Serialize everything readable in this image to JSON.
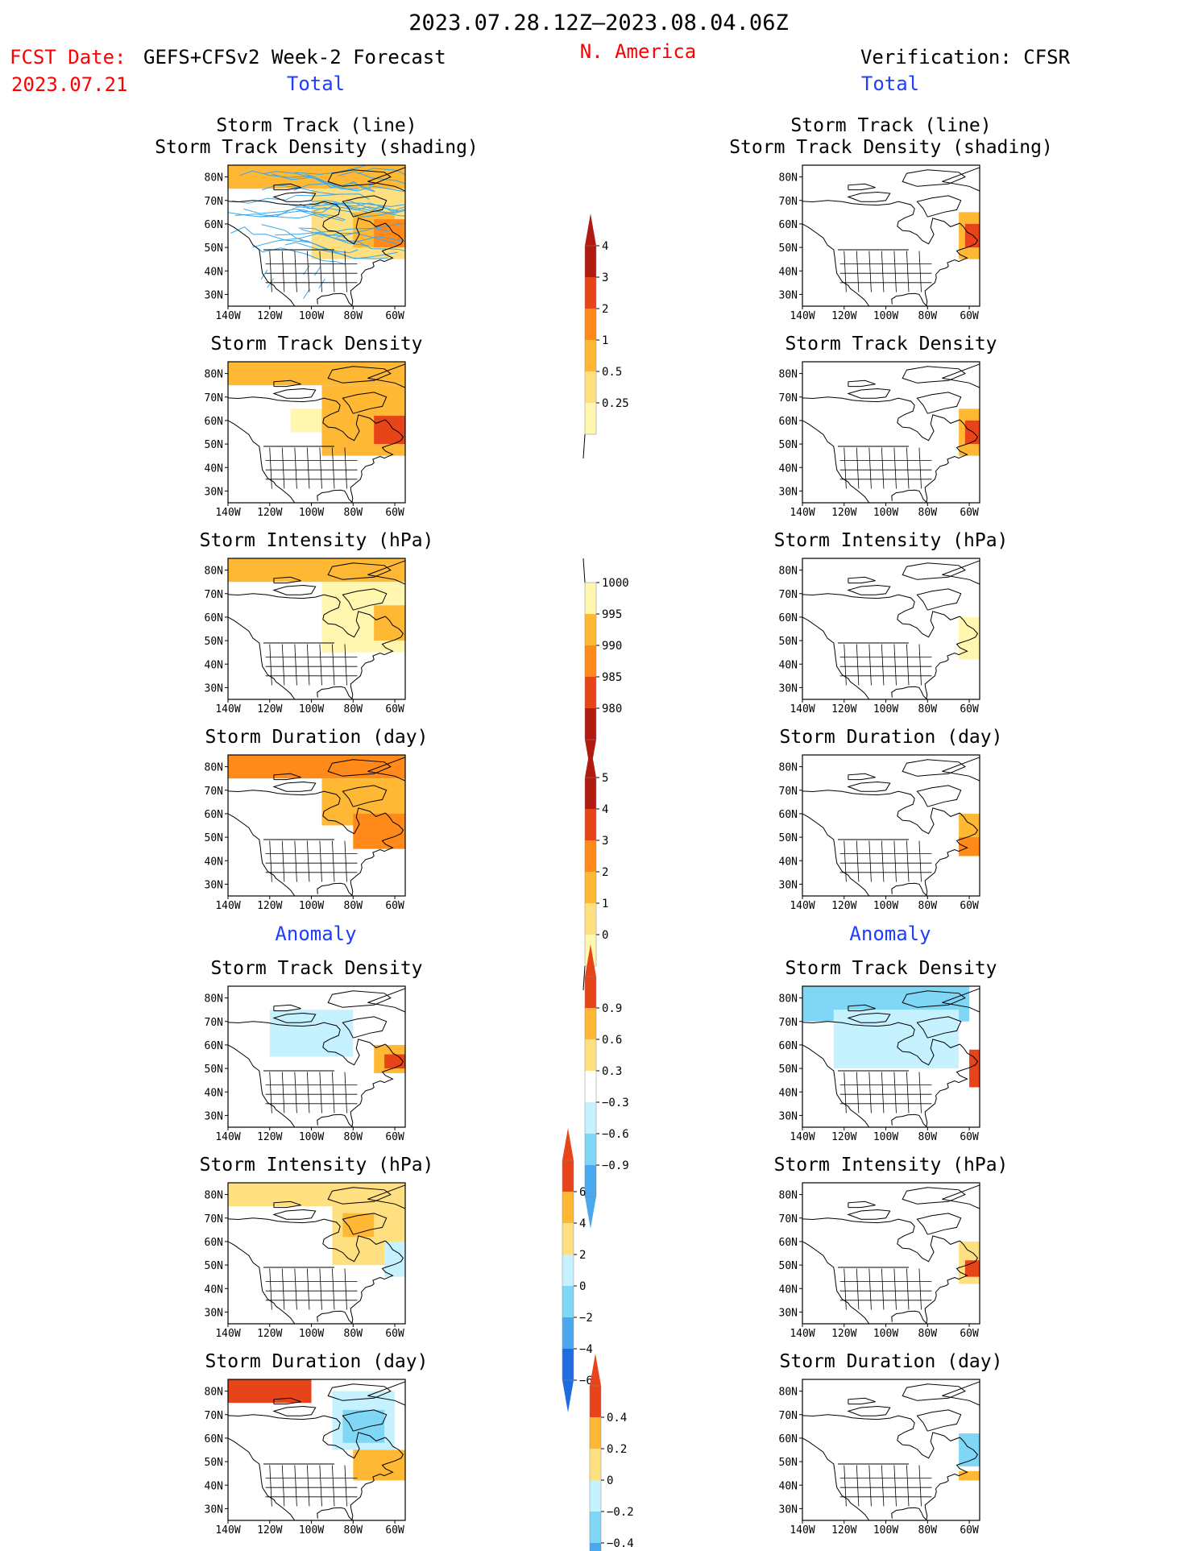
{
  "header": {
    "period": "2023.07.28.12Z–2023.08.04.06Z",
    "fcst_date_label": "FCST Date:",
    "fcst_date_value": "2023.07.21",
    "left_title": "GEFS+CFSv2 Week-2 Forecast",
    "region": "N. America",
    "right_title": "Verification: CFSR",
    "total_label": "Total",
    "anomaly_label": "Anomaly"
  },
  "colors": {
    "red_text": "#ff0000",
    "blue_text": "#1f3cff",
    "land": "#ffffff",
    "track_line": "#3aa6e8",
    "warm": [
      "#fff6b0",
      "#ffe080",
      "#ffb833",
      "#ff8a1a",
      "#e8441a",
      "#b01a10"
    ],
    "cool": [
      "#c6f2ff",
      "#7fd6f5",
      "#4aa8ef",
      "#1f6be0",
      "#0a40c8"
    ]
  },
  "map_axes": {
    "lon_ticks": [
      "140W",
      "120W",
      "100W",
      "80W",
      "60W"
    ],
    "lat_ticks": [
      "80N",
      "70N",
      "60N",
      "50N",
      "40N",
      "30N"
    ]
  },
  "panels": [
    {
      "id": "fc-track",
      "column": "forecast",
      "title1": "Storm Track (line)",
      "title2": "Storm Track Density (shading)",
      "scale": "density",
      "tracks": true
    },
    {
      "id": "vf-track",
      "column": "verification",
      "title1": "Storm Track (line)",
      "title2": "Storm Track Density (shading)",
      "scale": "density",
      "tracks": false
    },
    {
      "id": "fc-dens",
      "column": "forecast",
      "title1": "Storm Track Density",
      "title2": "",
      "scale": "density"
    },
    {
      "id": "vf-dens",
      "column": "verification",
      "title1": "Storm Track Density",
      "title2": "",
      "scale": "density"
    },
    {
      "id": "fc-int",
      "column": "forecast",
      "title1": "Storm Intensity (hPa)",
      "title2": "",
      "scale": "intensity"
    },
    {
      "id": "vf-int",
      "column": "verification",
      "title1": "Storm Intensity (hPa)",
      "title2": "",
      "scale": "intensity"
    },
    {
      "id": "fc-dur",
      "column": "forecast",
      "title1": "Storm Duration (day)",
      "title2": "",
      "scale": "duration"
    },
    {
      "id": "vf-dur",
      "column": "verification",
      "title1": "Storm Duration (day)",
      "title2": "",
      "scale": "duration"
    },
    {
      "id": "fc-adens",
      "column": "forecast",
      "title1": "Storm Track Density",
      "title2": "",
      "scale": "anom_density"
    },
    {
      "id": "vf-adens",
      "column": "verification",
      "title1": "Storm Track Density",
      "title2": "",
      "scale": "anom_density"
    },
    {
      "id": "fc-aint",
      "column": "forecast",
      "title1": "Storm Intensity (hPa)",
      "title2": "",
      "scale": "anom_intensity"
    },
    {
      "id": "vf-aint",
      "column": "verification",
      "title1": "Storm Intensity (hPa)",
      "title2": "",
      "scale": "anom_intensity"
    },
    {
      "id": "fc-adur",
      "column": "forecast",
      "title1": "Storm Duration (day)",
      "title2": "",
      "scale": "anom_duration"
    },
    {
      "id": "vf-adur",
      "column": "verification",
      "title1": "Storm Duration (day)",
      "title2": "",
      "scale": "anom_duration"
    }
  ],
  "colorbars": [
    {
      "id": "density",
      "labels": [
        "0.25",
        "0.5",
        "1",
        "2",
        "3",
        "4"
      ],
      "colors": [
        "#fff6b0",
        "#ffe080",
        "#ffb833",
        "#ff8a1a",
        "#e8441a",
        "#b01a10"
      ],
      "ends": "upper"
    },
    {
      "id": "intensity",
      "labels": [
        "1000",
        "995",
        "990",
        "985",
        "980"
      ],
      "colors": [
        "#fff6b0",
        "#ffb833",
        "#ff8a1a",
        "#e8441a",
        "#b01a10"
      ],
      "ends": "lower"
    },
    {
      "id": "duration",
      "labels": [
        "0",
        "1",
        "2",
        "3",
        "4",
        "5"
      ],
      "colors": [
        "#fff6b0",
        "#ffe080",
        "#ffb833",
        "#ff8a1a",
        "#e8441a",
        "#b01a10"
      ],
      "ends": "upper"
    },
    {
      "id": "anom_density",
      "labels": [
        "0.9",
        "0.6",
        "0.3",
        "−0.3",
        "−0.6",
        "−0.9"
      ],
      "colors": [
        "#e8441a",
        "#ffb833",
        "#ffe080",
        "#ffffff",
        "#c6f2ff",
        "#7fd6f5",
        "#4aa8ef"
      ],
      "ends": "both"
    },
    {
      "id": "anom_intensity",
      "labels": [
        "6",
        "4",
        "2",
        "0",
        "−2",
        "−4",
        "−6"
      ],
      "colors": [
        "#e8441a",
        "#ffb833",
        "#ffe080",
        "#c6f2ff",
        "#7fd6f5",
        "#4aa8ef",
        "#1f6be0"
      ],
      "ends": "both"
    },
    {
      "id": "anom_duration",
      "labels": [
        "0.4",
        "0.2",
        "0",
        "−0.2",
        "−0.4"
      ],
      "colors": [
        "#e8441a",
        "#ffb833",
        "#ffe080",
        "#c6f2ff",
        "#7fd6f5",
        "#4aa8ef"
      ],
      "ends": "both"
    }
  ],
  "chart_data": {
    "type": "heatmap",
    "lon_range": [
      -140,
      -55
    ],
    "lat_range": [
      25,
      85
    ],
    "fields": {
      "fc-track": [
        {
          "lon": [
            -140,
            -55
          ],
          "lat": [
            75,
            85
          ],
          "level": "1"
        },
        {
          "lon": [
            -100,
            -55
          ],
          "lat": [
            45,
            75
          ],
          "level": "0.5"
        },
        {
          "lon": [
            -80,
            -60
          ],
          "lat": [
            50,
            65
          ],
          "level": "1"
        },
        {
          "lon": [
            -70,
            -55
          ],
          "lat": [
            50,
            62
          ],
          "level": "2"
        }
      ],
      "vf-track": [
        {
          "lon": [
            -65,
            -55
          ],
          "lat": [
            45,
            65
          ],
          "level": "1"
        },
        {
          "lon": [
            -62,
            -55
          ],
          "lat": [
            50,
            60
          ],
          "level": "3"
        }
      ],
      "fc-dens": [
        {
          "lon": [
            -140,
            -55
          ],
          "lat": [
            75,
            85
          ],
          "level": "1"
        },
        {
          "lon": [
            -110,
            -90
          ],
          "lat": [
            55,
            65
          ],
          "level": "0.25"
        },
        {
          "lon": [
            -95,
            -55
          ],
          "lat": [
            45,
            75
          ],
          "level": "1"
        },
        {
          "lon": [
            -70,
            -55
          ],
          "lat": [
            50,
            62
          ],
          "level": "3"
        }
      ],
      "vf-dens": [
        {
          "lon": [
            -65,
            -55
          ],
          "lat": [
            45,
            65
          ],
          "level": "1"
        },
        {
          "lon": [
            -62,
            -55
          ],
          "lat": [
            50,
            60
          ],
          "level": "3"
        }
      ],
      "fc-int": [
        {
          "lon": [
            -140,
            -55
          ],
          "lat": [
            75,
            85
          ],
          "level": "995"
        },
        {
          "lon": [
            -95,
            -55
          ],
          "lat": [
            45,
            75
          ],
          "level": "1000"
        },
        {
          "lon": [
            -70,
            -55
          ],
          "lat": [
            50,
            65
          ],
          "level": "995"
        }
      ],
      "vf-int": [
        {
          "lon": [
            -65,
            -55
          ],
          "lat": [
            42,
            60
          ],
          "level": "1000"
        }
      ],
      "fc-dur": [
        {
          "lon": [
            -140,
            -55
          ],
          "lat": [
            75,
            85
          ],
          "level": "3"
        },
        {
          "lon": [
            -95,
            -55
          ],
          "lat": [
            55,
            75
          ],
          "level": "2"
        },
        {
          "lon": [
            -80,
            -55
          ],
          "lat": [
            45,
            60
          ],
          "level": "3"
        }
      ],
      "vf-dur": [
        {
          "lon": [
            -65,
            -55
          ],
          "lat": [
            42,
            60
          ],
          "level": "2"
        },
        {
          "lon": [
            -65,
            -55
          ],
          "lat": [
            42,
            50
          ],
          "level": "3"
        }
      ],
      "fc-adens": [
        {
          "lon": [
            -130,
            -80
          ],
          "lat": [
            58,
            78
          ],
          "level": "−0.3"
        },
        {
          "lon": [
            -120,
            -80
          ],
          "lat": [
            55,
            75
          ],
          "level": "−0.6"
        },
        {
          "lon": [
            -70,
            -55
          ],
          "lat": [
            48,
            60
          ],
          "level": "0.6"
        },
        {
          "lon": [
            -65,
            -55
          ],
          "lat": [
            50,
            56
          ],
          "level": "0.9"
        }
      ],
      "vf-adens": [
        {
          "lon": [
            -140,
            -60
          ],
          "lat": [
            70,
            85
          ],
          "level": "−0.9"
        },
        {
          "lon": [
            -125,
            -65
          ],
          "lat": [
            50,
            75
          ],
          "level": "−0.6"
        },
        {
          "lon": [
            -60,
            -55
          ],
          "lat": [
            42,
            58
          ],
          "level": "0.9"
        }
      ],
      "fc-aint": [
        {
          "lon": [
            -140,
            -55
          ],
          "lat": [
            75,
            85
          ],
          "level": "2"
        },
        {
          "lon": [
            -90,
            -55
          ],
          "lat": [
            50,
            75
          ],
          "level": "2"
        },
        {
          "lon": [
            -85,
            -70
          ],
          "lat": [
            62,
            72
          ],
          "level": "4"
        },
        {
          "lon": [
            -65,
            -55
          ],
          "lat": [
            45,
            60
          ],
          "level": "0"
        }
      ],
      "vf-aint": [
        {
          "lon": [
            -65,
            -55
          ],
          "lat": [
            42,
            60
          ],
          "level": "2"
        },
        {
          "lon": [
            -62,
            -55
          ],
          "lat": [
            45,
            52
          ],
          "level": "6"
        }
      ],
      "fc-adur": [
        {
          "lon": [
            -140,
            -100
          ],
          "lat": [
            75,
            85
          ],
          "level": "0.4"
        },
        {
          "lon": [
            -90,
            -60
          ],
          "lat": [
            55,
            80
          ],
          "level": "−0.2"
        },
        {
          "lon": [
            -85,
            -65
          ],
          "lat": [
            58,
            72
          ],
          "level": "−0.4"
        },
        {
          "lon": [
            -80,
            -55
          ],
          "lat": [
            42,
            55
          ],
          "level": "0.2"
        }
      ],
      "vf-adur": [
        {
          "lon": [
            -65,
            -55
          ],
          "lat": [
            48,
            62
          ],
          "level": "−0.4"
        },
        {
          "lon": [
            -65,
            -55
          ],
          "lat": [
            42,
            46
          ],
          "level": "0.2"
        }
      ]
    }
  }
}
